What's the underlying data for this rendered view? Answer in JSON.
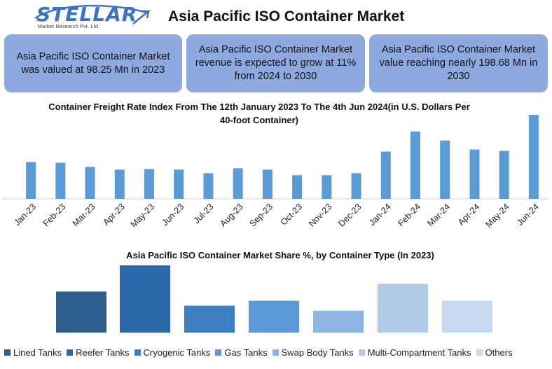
{
  "header": {
    "logo_text": "STELLAR",
    "logo_subtext": "Market Research Pvt. Ltd.",
    "title": "Asia Pacific ISO Container Market"
  },
  "stats": [
    {
      "text": "Asia Pacific ISO Container Market was valued at 98.25 Mn in 2023"
    },
    {
      "text": "Asia Pacific ISO Container Market revenue is expected to grow at 11% from 2024 to 2030"
    },
    {
      "text": "Asia Pacific ISO Container Market value reaching nearly 198.68 Mn in 2030"
    }
  ],
  "colors": {
    "stat_box": "#8ea9e0",
    "freight_bar": "#5b9bd5",
    "logo": "#3a74c4"
  },
  "chart_data": [
    {
      "type": "bar",
      "title": "Container Freight Rate Index From The 12th January 2023 To The 4th Jun 2024(in U.S. Dollars Per 40-foot Container)",
      "categories": [
        "Jan-23",
        "Feb-23",
        "Mar-23",
        "Apr-23",
        "May-23",
        "Jun-23",
        "Jul-23",
        "Aug-23",
        "Sep-23",
        "Oct-23",
        "Nov-23",
        "Dec-23",
        "Jan-24",
        "Feb-24",
        "Mar-24",
        "Apr-24",
        "May-24",
        "Jun-24"
      ],
      "values": [
        53,
        52,
        46,
        42,
        43,
        42,
        37,
        44,
        42,
        34,
        34,
        37,
        68,
        97,
        84,
        71,
        69,
        121
      ],
      "ylim": [
        0,
        125
      ],
      "grid": false,
      "xlabel": "",
      "ylabel": ""
    },
    {
      "type": "bar",
      "title": "Asia Pacific ISO Container Market Share %, by Container Type (In 2023)",
      "categories": [
        "Lined Tanks",
        "Reefer Tanks",
        "Cryogenic Tanks",
        "Gas Tanks",
        "Swap Body Tanks",
        "Multi-Compartment Tanks",
        "Others"
      ],
      "values": [
        58,
        95,
        38,
        45,
        31,
        69,
        45
      ],
      "colors": [
        "#2e5f8c",
        "#2a6aab",
        "#3d7fc1",
        "#5a98d6",
        "#8db4e2",
        "#b2cbe8",
        "#c8daf0"
      ],
      "ylim": [
        0,
        95
      ],
      "legend_position": "bottom",
      "xlabel": "",
      "ylabel": ""
    }
  ]
}
